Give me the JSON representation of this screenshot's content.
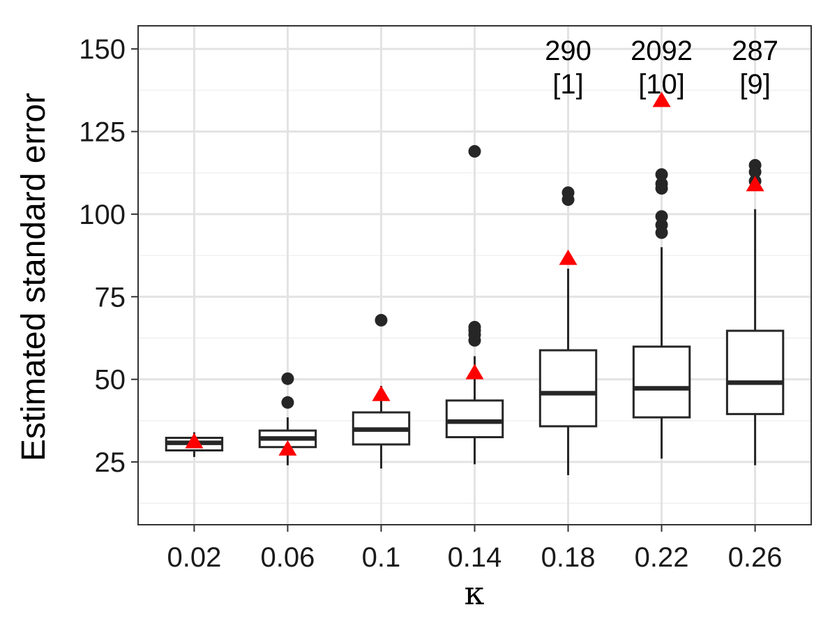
{
  "chart_data": {
    "type": "box",
    "title": "",
    "xlabel": "κ",
    "ylabel": "Estimated standard error",
    "ylim": [
      6,
      157
    ],
    "y_ticks": [
      25,
      50,
      75,
      100,
      125,
      150
    ],
    "y_tick_labels": [
      "25",
      "50",
      "75",
      "100",
      "125",
      "150"
    ],
    "grid": true,
    "categories": [
      "0.02",
      "0.06",
      "0.1",
      "0.14",
      "0.18",
      "0.22",
      "0.26"
    ],
    "boxes": [
      {
        "category": "0.02",
        "whisker_low": 26.5,
        "q1": 28.5,
        "median": 30.8,
        "q3": 32.3,
        "whisker_high": 34,
        "outliers": []
      },
      {
        "category": "0.06",
        "whisker_low": 24,
        "q1": 29.5,
        "median": 32.1,
        "q3": 34.5,
        "whisker_high": 38.5,
        "outliers": [
          43,
          50.2
        ]
      },
      {
        "category": "0.1",
        "whisker_low": 23,
        "q1": 30.3,
        "median": 34.8,
        "q3": 40,
        "whisker_high": 48,
        "outliers": [
          67.9
        ]
      },
      {
        "category": "0.14",
        "whisker_low": 24.3,
        "q1": 32.5,
        "median": 37.2,
        "q3": 43.6,
        "whisker_high": 57,
        "outliers": [
          61.8,
          63.5,
          64.8,
          65.8,
          119
        ]
      },
      {
        "category": "0.18",
        "whisker_low": 21,
        "q1": 35.8,
        "median": 45.8,
        "q3": 58.8,
        "whisker_high": 83.5,
        "outliers": [
          104.4,
          106.5
        ]
      },
      {
        "category": "0.22",
        "whisker_low": 26,
        "q1": 38.5,
        "median": 47.3,
        "q3": 59.9,
        "whisker_high": 90,
        "outliers": [
          94.4,
          96.7,
          99.3,
          107.8,
          109.2,
          112
        ]
      },
      {
        "category": "0.26",
        "whisker_low": 24,
        "q1": 39.5,
        "median": 49,
        "q3": 64.7,
        "whisker_high": 101.5,
        "outliers": [
          110,
          112.8,
          114.8
        ]
      }
    ],
    "triangles": [
      {
        "category": "0.02",
        "value": 30.9
      },
      {
        "category": "0.06",
        "value": 28.7
      },
      {
        "category": "0.1",
        "value": 45.2
      },
      {
        "category": "0.14",
        "value": 51.8
      },
      {
        "category": "0.18",
        "value": 86.4
      },
      {
        "category": "0.22",
        "value": 134.2
      },
      {
        "category": "0.26",
        "value": 108.7
      }
    ],
    "annotations": [
      {
        "category": "0.18",
        "line1": "290",
        "line2": "[1]"
      },
      {
        "category": "0.22",
        "line1": "2092",
        "line2": "[10]"
      },
      {
        "category": "0.26",
        "line1": "287",
        "line2": "[9]"
      }
    ],
    "colors": {
      "box": "#262626",
      "outlier": "#262626",
      "triangle": "#ff0000",
      "grid_major": "#e3e3e3",
      "grid_minor": "#f0f0f0",
      "panel_border": "#333333"
    }
  }
}
